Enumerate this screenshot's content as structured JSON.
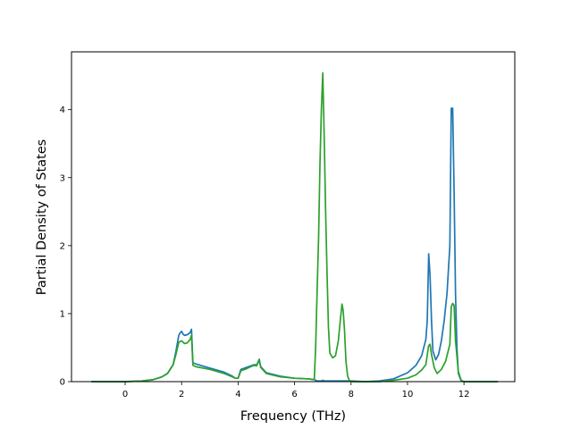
{
  "chart_data": {
    "type": "line",
    "title": "",
    "xlabel": "Frequency (THz)",
    "ylabel": "Partial Density of States",
    "xlim": [
      -1.9,
      13.8
    ],
    "ylim": [
      0,
      4.85
    ],
    "xticks": [
      0,
      2,
      4,
      6,
      8,
      10,
      12
    ],
    "yticks": [
      0,
      1,
      2,
      3,
      4
    ],
    "grid": false,
    "legend": "none",
    "series": [
      {
        "color": "#1f77b4",
        "x": [
          -1.2,
          0.0,
          0.6,
          1.0,
          1.3,
          1.5,
          1.7,
          1.8,
          1.9,
          1.95,
          2.0,
          2.05,
          2.1,
          2.2,
          2.3,
          2.35,
          2.4,
          2.45,
          2.5,
          3.0,
          3.5,
          3.8,
          3.9,
          4.0,
          4.1,
          4.3,
          4.5,
          4.6,
          4.65,
          4.7,
          4.75,
          4.8,
          5.0,
          5.5,
          6.0,
          6.5,
          6.7,
          6.8,
          6.85,
          6.9,
          6.95,
          7.0,
          7.05,
          7.1,
          7.2,
          7.4,
          7.6,
          7.7,
          7.8,
          7.9,
          8.0,
          8.5,
          9.0,
          9.5,
          10.0,
          10.3,
          10.5,
          10.65,
          10.7,
          10.75,
          10.8,
          10.85,
          10.9,
          11.0,
          11.1,
          11.2,
          11.3,
          11.4,
          11.5,
          11.55,
          11.6,
          11.65,
          11.7,
          11.75,
          11.8,
          11.9,
          12.0,
          13.2
        ],
        "y": [
          0.0,
          0.0,
          0.01,
          0.03,
          0.07,
          0.12,
          0.25,
          0.45,
          0.68,
          0.72,
          0.74,
          0.7,
          0.68,
          0.69,
          0.72,
          0.77,
          0.28,
          0.27,
          0.26,
          0.2,
          0.14,
          0.08,
          0.05,
          0.05,
          0.18,
          0.21,
          0.24,
          0.25,
          0.24,
          0.28,
          0.33,
          0.22,
          0.13,
          0.08,
          0.05,
          0.04,
          0.03,
          0.01,
          0.01,
          0.01,
          0.01,
          0.02,
          0.01,
          0.01,
          0.01,
          0.01,
          0.01,
          0.01,
          0.01,
          0.01,
          0.01,
          0.0,
          0.01,
          0.04,
          0.13,
          0.24,
          0.38,
          0.62,
          0.9,
          1.88,
          1.55,
          0.9,
          0.45,
          0.32,
          0.4,
          0.6,
          0.9,
          1.3,
          2.0,
          4.02,
          4.02,
          2.8,
          1.3,
          0.5,
          0.12,
          0.01,
          0.0,
          0.0
        ]
      },
      {
        "color": "#2ca02c",
        "x": [
          -1.2,
          0.0,
          0.6,
          1.0,
          1.3,
          1.5,
          1.7,
          1.8,
          1.9,
          2.0,
          2.1,
          2.2,
          2.3,
          2.35,
          2.4,
          2.45,
          2.5,
          3.0,
          3.5,
          3.8,
          3.9,
          4.0,
          4.1,
          4.3,
          4.5,
          4.6,
          4.65,
          4.7,
          4.75,
          4.8,
          5.0,
          5.5,
          6.0,
          6.5,
          6.7,
          6.75,
          6.8,
          6.85,
          6.9,
          6.95,
          7.0,
          7.05,
          7.1,
          7.15,
          7.2,
          7.25,
          7.35,
          7.45,
          7.55,
          7.62,
          7.68,
          7.72,
          7.77,
          7.82,
          7.88,
          7.95,
          8.05,
          8.3,
          9.0,
          9.5,
          10.0,
          10.3,
          10.5,
          10.65,
          10.75,
          10.8,
          10.85,
          10.95,
          11.05,
          11.2,
          11.35,
          11.5,
          11.55,
          11.6,
          11.65,
          11.7,
          11.8,
          11.9,
          12.0,
          13.2
        ],
        "y": [
          0.0,
          0.0,
          0.01,
          0.03,
          0.07,
          0.12,
          0.25,
          0.4,
          0.58,
          0.6,
          0.56,
          0.57,
          0.62,
          0.68,
          0.24,
          0.23,
          0.22,
          0.18,
          0.12,
          0.07,
          0.05,
          0.05,
          0.16,
          0.19,
          0.23,
          0.24,
          0.23,
          0.27,
          0.32,
          0.21,
          0.12,
          0.07,
          0.05,
          0.04,
          0.03,
          0.55,
          1.35,
          2.1,
          3.2,
          4.0,
          4.54,
          3.6,
          2.5,
          1.6,
          0.8,
          0.42,
          0.35,
          0.38,
          0.6,
          0.9,
          1.14,
          1.05,
          0.75,
          0.3,
          0.08,
          0.01,
          0.0,
          0.0,
          0.0,
          0.02,
          0.05,
          0.1,
          0.17,
          0.25,
          0.53,
          0.55,
          0.4,
          0.2,
          0.12,
          0.18,
          0.3,
          0.55,
          1.1,
          1.15,
          1.12,
          0.6,
          0.15,
          0.02,
          0.0,
          0.0
        ]
      }
    ]
  }
}
